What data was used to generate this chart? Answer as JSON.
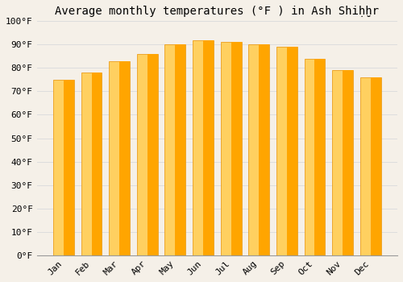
{
  "title": "Average monthly temperatures (°F ) in Ash Shiḥḫr",
  "months": [
    "Jan",
    "Feb",
    "Mar",
    "Apr",
    "May",
    "Jun",
    "Jul",
    "Aug",
    "Sep",
    "Oct",
    "Nov",
    "Dec"
  ],
  "values": [
    75,
    78,
    83,
    86,
    90,
    92,
    91,
    90,
    89,
    84,
    79,
    76
  ],
  "bar_color_face": "#FFA500",
  "bar_color_light": "#FFD060",
  "bar_edge_color": "#E89000",
  "background_color": "#F5F0E8",
  "plot_bg_color": "#F5F0E8",
  "grid_color": "#DDDDDD",
  "ylim": [
    0,
    100
  ],
  "yticks": [
    0,
    10,
    20,
    30,
    40,
    50,
    60,
    70,
    80,
    90,
    100
  ],
  "ylabel_suffix": "°F",
  "title_fontsize": 10,
  "tick_fontsize": 8,
  "font_family": "monospace"
}
